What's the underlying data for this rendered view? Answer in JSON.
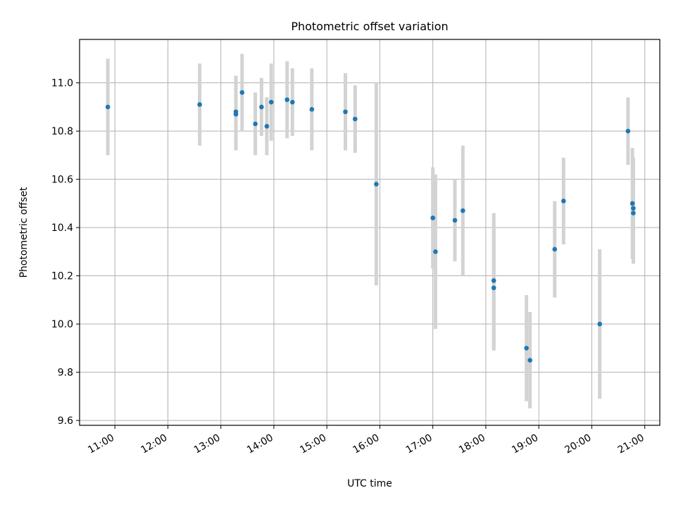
{
  "chart_data": {
    "type": "scatter",
    "title": "Photometric offset variation",
    "xlabel": "UTC time",
    "ylabel": "Photometric offset",
    "x_ticks": [
      "11:00",
      "12:00",
      "13:00",
      "14:00",
      "15:00",
      "16:00",
      "17:00",
      "18:00",
      "19:00",
      "20:00",
      "21:00"
    ],
    "y_ticks": [
      "9.6",
      "9.8",
      "10.0",
      "10.2",
      "10.4",
      "10.6",
      "10.8",
      "11.0"
    ],
    "xlim": [
      "10:20",
      "21:17"
    ],
    "ylim": [
      9.58,
      11.18
    ],
    "grid": true,
    "colors": {
      "point": "#1f77b4",
      "errorbar": "#d3d3d3",
      "grid": "#b0b0b0"
    },
    "points": [
      {
        "x": "10:52",
        "y": 10.9,
        "err": 0.2
      },
      {
        "x": "12:36",
        "y": 10.91,
        "err": 0.17
      },
      {
        "x": "13:17",
        "y": 10.88,
        "err": 0.15
      },
      {
        "x": "13:17",
        "y": 10.87,
        "err": 0.15
      },
      {
        "x": "13:24",
        "y": 10.96,
        "err": 0.16
      },
      {
        "x": "13:39",
        "y": 10.83,
        "err": 0.13
      },
      {
        "x": "13:46",
        "y": 10.9,
        "err": 0.12
      },
      {
        "x": "13:52",
        "y": 10.82,
        "err": 0.12
      },
      {
        "x": "13:57",
        "y": 10.92,
        "err": 0.16
      },
      {
        "x": "14:15",
        "y": 10.93,
        "err": 0.16
      },
      {
        "x": "14:21",
        "y": 10.92,
        "err": 0.14
      },
      {
        "x": "14:43",
        "y": 10.89,
        "err": 0.17
      },
      {
        "x": "15:21",
        "y": 10.88,
        "err": 0.16
      },
      {
        "x": "15:32",
        "y": 10.85,
        "err": 0.14
      },
      {
        "x": "15:56",
        "y": 10.58,
        "err": 0.42
      },
      {
        "x": "17:00",
        "y": 10.44,
        "err": 0.21
      },
      {
        "x": "17:03",
        "y": 10.3,
        "err": 0.32
      },
      {
        "x": "17:25",
        "y": 10.43,
        "err": 0.17
      },
      {
        "x": "17:34",
        "y": 10.47,
        "err": 0.27
      },
      {
        "x": "18:09",
        "y": 10.18,
        "err": 0.28
      },
      {
        "x": "18:09",
        "y": 10.15,
        "err": 0.26
      },
      {
        "x": "18:46",
        "y": 9.9,
        "err": 0.22
      },
      {
        "x": "18:50",
        "y": 9.85,
        "err": 0.2
      },
      {
        "x": "19:18",
        "y": 10.31,
        "err": 0.2
      },
      {
        "x": "19:28",
        "y": 10.51,
        "err": 0.18
      },
      {
        "x": "20:09",
        "y": 10.0,
        "err": 0.31
      },
      {
        "x": "20:41",
        "y": 10.8,
        "err": 0.14
      },
      {
        "x": "20:46",
        "y": 10.5,
        "err": 0.23
      },
      {
        "x": "20:47",
        "y": 10.48,
        "err": 0.21
      },
      {
        "x": "20:47",
        "y": 10.46,
        "err": 0.21
      }
    ]
  }
}
